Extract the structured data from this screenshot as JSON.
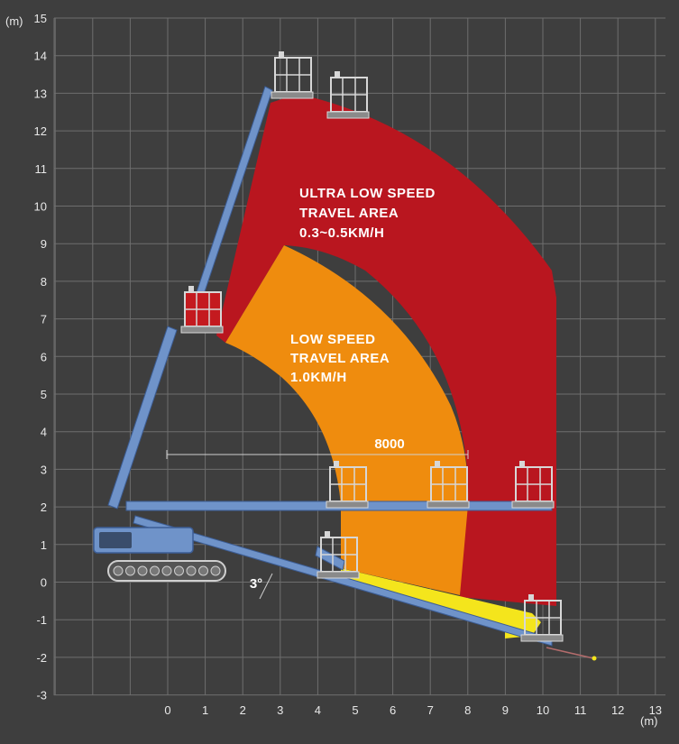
{
  "colors": {
    "background": "#3e3e3e",
    "grid": "#6e6e6e",
    "ultra_low_zone": "#b9161f",
    "low_zone": "#ef8c0e",
    "tilt_zone": "#f4e51c",
    "boom": "#6f93c9",
    "boom_edge": "#3c5d95",
    "basket": "#d7d7d7",
    "basket_red": "#c41a1f",
    "track": "#cfcfcf"
  },
  "axes": {
    "y_unit": "(m)",
    "x_unit": "(m)",
    "y_ticks": [
      "15",
      "14",
      "13",
      "12",
      "11",
      "10",
      "9",
      "8",
      "7",
      "6",
      "5",
      "4",
      "3",
      "2",
      "1",
      "0",
      "-1",
      "-2",
      "-3"
    ],
    "x_ticks": [
      "0",
      "1",
      "2",
      "3",
      "4",
      "5",
      "6",
      "7",
      "8",
      "9",
      "10",
      "11",
      "12",
      "13"
    ]
  },
  "zones": {
    "ultra_low": {
      "line1": "ULTRA LOW SPEED",
      "line2": "TRAVEL AREA",
      "line3": "0.3~0.5KM/H"
    },
    "low": {
      "line1": "LOW SPEED",
      "line2": "TRAVEL AREA",
      "line3": "1.0KM/H"
    }
  },
  "dimension": {
    "label": "8000",
    "from_m": 0,
    "to_m": 8
  },
  "angle": {
    "label": "3°"
  },
  "icons": [
    "basket-icon",
    "crawler-carrier-icon",
    "boom-icon"
  ]
}
